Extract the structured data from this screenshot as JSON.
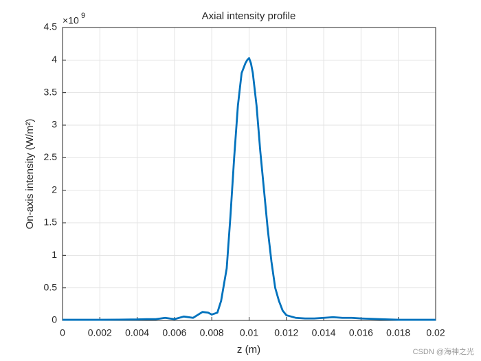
{
  "chart_data": {
    "type": "line",
    "title": "Axial intensity profile",
    "x_label": "z (m)",
    "y_label": "On-axis intensity (W/m²)",
    "y_exponent_base": "×10",
    "y_exponent": "9",
    "watermark": "CSDN @海神之光",
    "x": [
      0,
      0.001,
      0.002,
      0.003,
      0.004,
      0.0045,
      0.005,
      0.0055,
      0.006,
      0.0065,
      0.007,
      0.0075,
      0.0078,
      0.008,
      0.0083,
      0.0085,
      0.0088,
      0.009,
      0.0092,
      0.0094,
      0.0096,
      0.0098,
      0.0099,
      0.01,
      0.0101,
      0.0102,
      0.0104,
      0.0106,
      0.0108,
      0.011,
      0.0112,
      0.0114,
      0.0116,
      0.0118,
      0.012,
      0.0125,
      0.013,
      0.0135,
      0.014,
      0.0145,
      0.015,
      0.0155,
      0.016,
      0.017,
      0.018,
      0.019,
      0.02
    ],
    "series": [
      {
        "name": "intensity",
        "color": "#0072BD",
        "values": [
          0.01,
          0.01,
          0.01,
          0.012,
          0.015,
          0.02,
          0.02,
          0.04,
          0.02,
          0.06,
          0.04,
          0.13,
          0.12,
          0.09,
          0.12,
          0.3,
          0.8,
          1.6,
          2.5,
          3.3,
          3.8,
          3.95,
          4.0,
          4.03,
          3.95,
          3.8,
          3.3,
          2.6,
          2.0,
          1.4,
          0.9,
          0.5,
          0.3,
          0.15,
          0.08,
          0.04,
          0.03,
          0.03,
          0.04,
          0.05,
          0.04,
          0.04,
          0.03,
          0.02,
          0.01,
          0.01,
          0.01
        ]
      }
    ],
    "xlim": [
      0,
      0.02
    ],
    "xticks": [
      0,
      0.002,
      0.004,
      0.006,
      0.008,
      0.01,
      0.012,
      0.014,
      0.016,
      0.018,
      0.02
    ],
    "ylim": [
      0,
      4.5
    ],
    "yticks": [
      0,
      0.5,
      1,
      1.5,
      2,
      2.5,
      3,
      3.5,
      4,
      4.5
    ],
    "grid": true
  }
}
